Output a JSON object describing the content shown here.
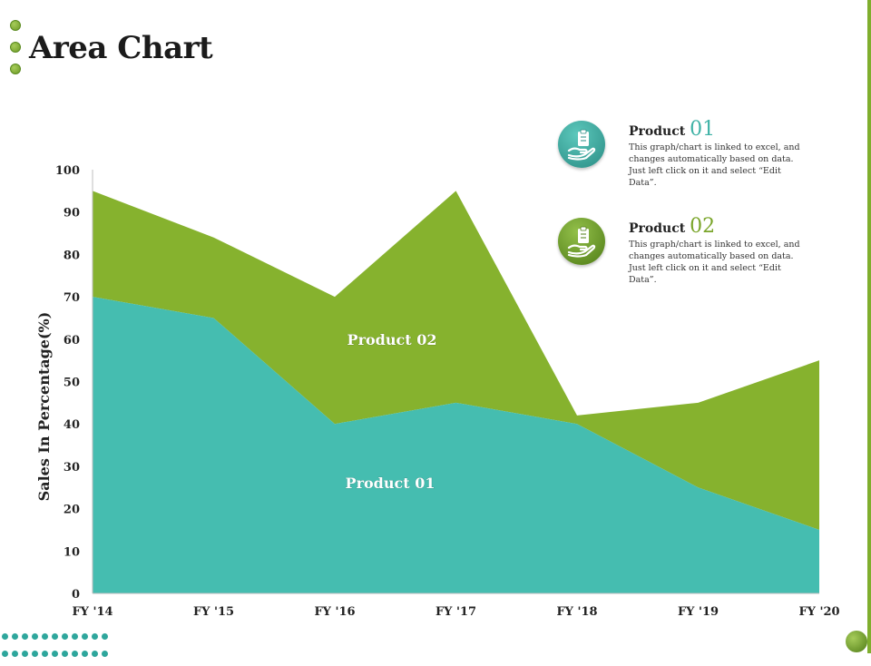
{
  "page": {
    "title": "Area Chart"
  },
  "chart_data": {
    "type": "area",
    "stacked": true,
    "categories": [
      "FY '14",
      "FY '15",
      "FY '16",
      "FY '17",
      "FY '18",
      "FY '19",
      "FY '20"
    ],
    "series": [
      {
        "name": "Product 01",
        "values": [
          70,
          65,
          40,
          45,
          40,
          25,
          15
        ],
        "color": "#45bdb0"
      },
      {
        "name": "Product 02",
        "values": [
          25,
          19,
          30,
          50,
          2,
          20,
          40
        ],
        "color": "#86b22e"
      }
    ],
    "ylabel": "Sales In Percentage(%)",
    "xlabel": "",
    "ylim": [
      0,
      100
    ],
    "yticks": [
      "0",
      "10",
      "20",
      "30",
      "40",
      "50",
      "60",
      "70",
      "80",
      "90",
      "100"
    ],
    "grid": false,
    "legend": "top-right"
  },
  "legend": [
    {
      "label": "Product",
      "number": "01",
      "number_color": "#3fb2a6",
      "icon": "hand-holding-clipboard-icon",
      "icon_gradient": [
        "#5cc8bc",
        "#2a8c84"
      ],
      "description": "This graph/chart is linked to excel, and changes automatically based on data. Just left click on it and select “Edit Data”."
    },
    {
      "label": "Product",
      "number": "02",
      "number_color": "#7aa52a",
      "icon": "hand-holding-clipboard-icon",
      "icon_gradient": [
        "#93c04a",
        "#4f7c16"
      ],
      "description": "This graph/chart is linked to excel, and changes automatically based on data. Just left click on it and select “Edit Data”."
    }
  ]
}
